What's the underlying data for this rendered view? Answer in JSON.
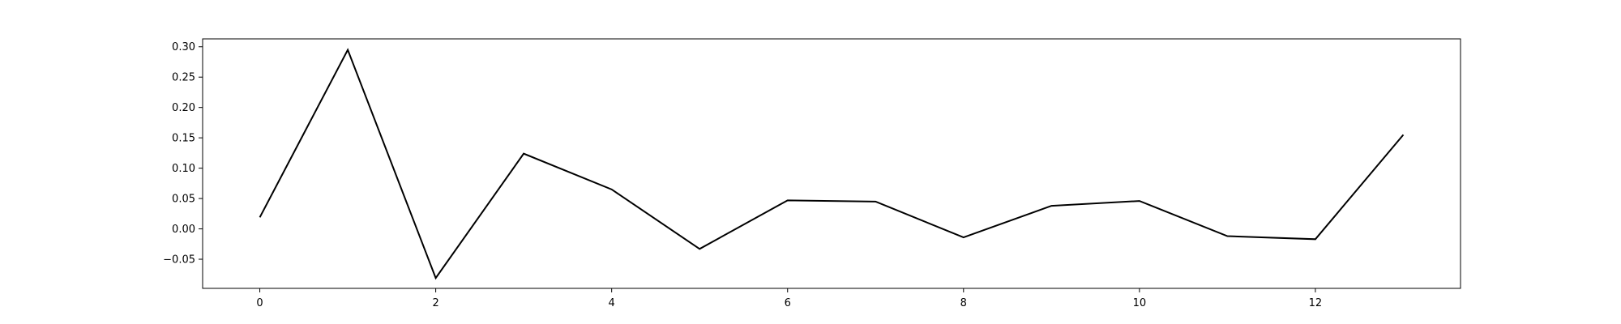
{
  "chart_data": {
    "type": "line",
    "title": "",
    "xlabel": "",
    "ylabel": "",
    "x": [
      0,
      1,
      2,
      3,
      4,
      5,
      6,
      7,
      8,
      9,
      10,
      11,
      12,
      13
    ],
    "series": [
      {
        "values": [
          0.019,
          0.295,
          -0.081,
          0.124,
          0.065,
          -0.033,
          0.047,
          0.045,
          -0.014,
          0.038,
          0.046,
          -0.012,
          -0.017,
          0.155
        ],
        "color": "#000000"
      }
    ],
    "xlim": [
      -0.65,
      13.65
    ],
    "ylim": [
      -0.098,
      0.313
    ],
    "x_ticks": [
      0,
      2,
      4,
      6,
      8,
      10,
      12
    ],
    "x_tick_labels": [
      "0",
      "2",
      "4",
      "6",
      "8",
      "10",
      "12"
    ],
    "y_ticks": [
      -0.05,
      0.0,
      0.05,
      0.1,
      0.15,
      0.2,
      0.25,
      0.3
    ],
    "y_tick_labels": [
      "−0.05",
      "0.00",
      "0.05",
      "0.10",
      "0.15",
      "0.20",
      "0.25",
      "0.30"
    ],
    "grid": false,
    "legend": "none"
  }
}
